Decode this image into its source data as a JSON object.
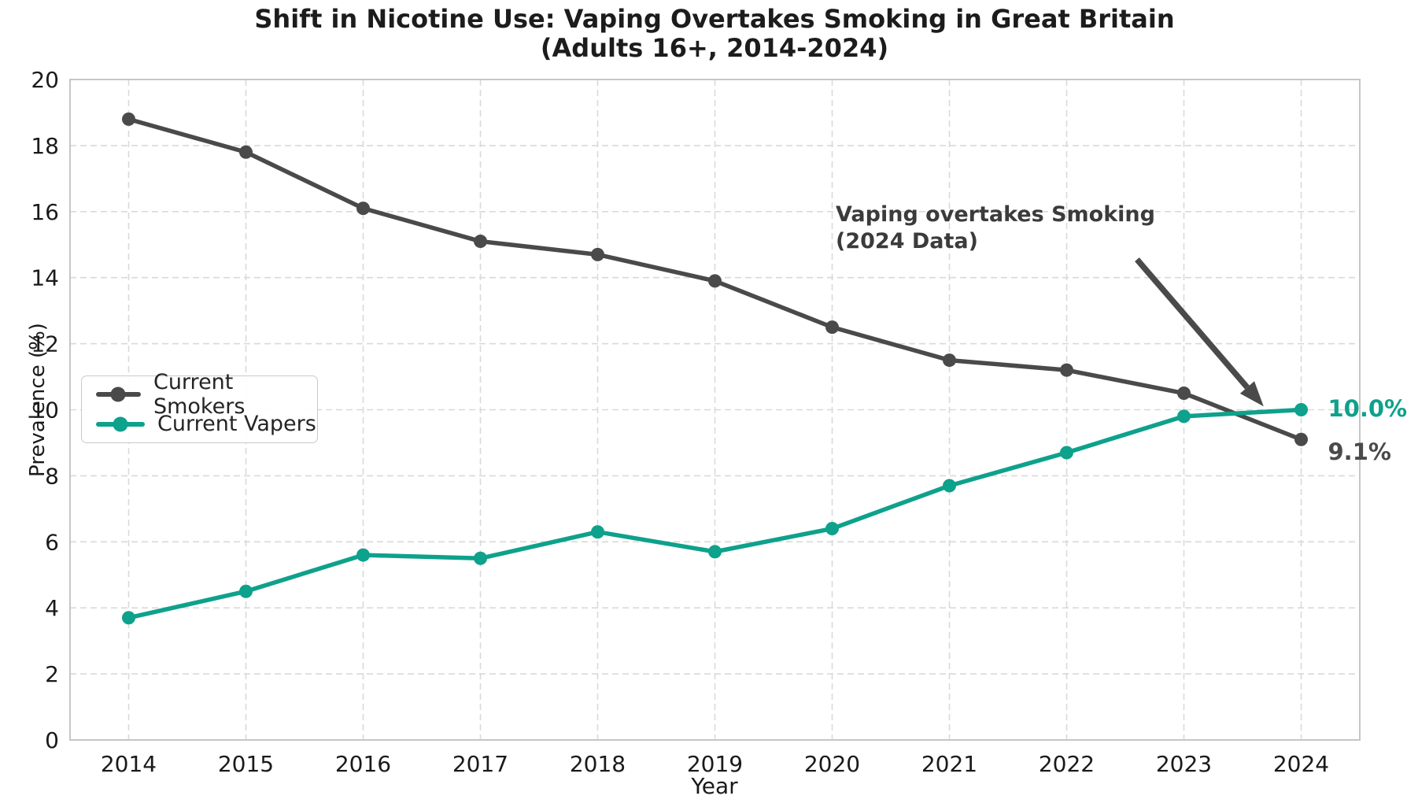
{
  "title": {
    "line1": "Shift in Nicotine Use: Vaping Overtakes Smoking in Great Britain",
    "line2": "(Adults 16+, 2014-2024)"
  },
  "chart_data": {
    "type": "line",
    "title": "Shift in Nicotine Use: Vaping Overtakes Smoking in Great Britain (Adults 16+, 2014-2024)",
    "xlabel": "Year",
    "ylabel": "Prevalence (%)",
    "x": [
      2014,
      2015,
      2016,
      2017,
      2018,
      2019,
      2020,
      2021,
      2022,
      2023,
      2024
    ],
    "series": [
      {
        "name": "Current Smokers",
        "color": "#4a4a4a",
        "values": [
          18.8,
          17.8,
          16.1,
          15.1,
          14.7,
          13.9,
          12.5,
          11.5,
          11.2,
          10.5,
          9.1
        ],
        "end_label": "9.1%"
      },
      {
        "name": "Current Vapers",
        "color": "#0ea18c",
        "values": [
          3.7,
          4.5,
          5.6,
          5.5,
          6.3,
          5.7,
          6.4,
          7.7,
          8.7,
          9.8,
          10.0
        ],
        "end_label": "10.0%"
      }
    ],
    "xlim": [
      2013.5,
      2024.5
    ],
    "ylim": [
      0,
      20
    ],
    "ytick_step": 2,
    "grid": "dashed",
    "legend_position": "center-left",
    "annotation": {
      "line1": "Vaping overtakes Smoking",
      "line2": "(2024 Data)",
      "arrow": {
        "from": {
          "x": 2022.6,
          "y": 14.55
        },
        "to": {
          "x": 2023.68,
          "y": 10.1
        }
      }
    }
  }
}
